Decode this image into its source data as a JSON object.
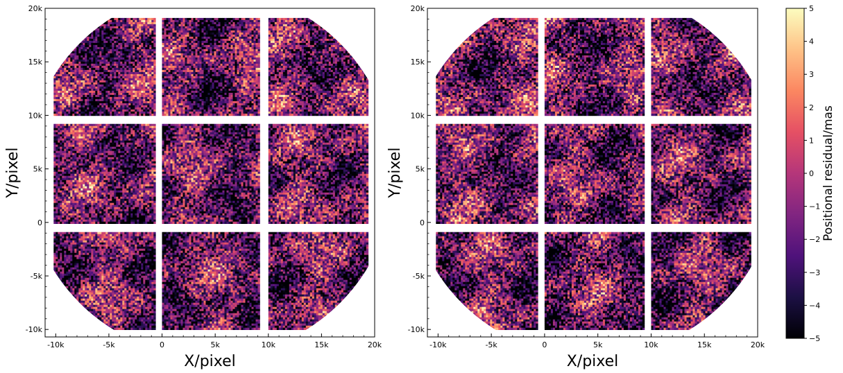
{
  "chart_data": [
    {
      "type": "heatmap",
      "xlabel": "X/pixel",
      "ylabel": "Y/pixel",
      "xlim": [
        -11000,
        20000
      ],
      "ylim": [
        -10700,
        20000
      ],
      "xticks": [
        -10000,
        -5000,
        0,
        5000,
        10000,
        15000,
        20000
      ],
      "yticks": [
        -10000,
        -5000,
        0,
        5000,
        10000,
        15000,
        20000
      ],
      "xtick_labels": [
        "-10k",
        "-5k",
        "0",
        "5k",
        "10k",
        "15k",
        "20k"
      ],
      "ytick_labels": [
        "-10k",
        "-5k",
        "0",
        "5k",
        "10k",
        "15k",
        "20k"
      ],
      "layout": "3x3 detector mosaic inside a circular field of view",
      "detector_x_ranges": [
        [
          -10200,
          -800
        ],
        [
          0,
          9200
        ],
        [
          10000,
          19300
        ]
      ],
      "detector_y_ranges": [
        [
          -10000,
          -900
        ],
        [
          0,
          9200
        ],
        [
          10000,
          19100
        ]
      ],
      "field_circle_center": [
        4500,
        4600
      ],
      "field_circle_radius": 17300,
      "value_range": [
        -5,
        5
      ],
      "colormap": "magma"
    },
    {
      "type": "heatmap",
      "xlabel": "X/pixel",
      "ylabel": "Y/pixel",
      "xlim": [
        -11000,
        20000
      ],
      "ylim": [
        -10700,
        20000
      ],
      "xticks": [
        -10000,
        -5000,
        0,
        5000,
        10000,
        15000,
        20000
      ],
      "yticks": [
        -10000,
        -5000,
        0,
        5000,
        10000,
        15000,
        20000
      ],
      "xtick_labels": [
        "-10k",
        "-5k",
        "0",
        "5k",
        "10k",
        "15k",
        "20k"
      ],
      "ytick_labels": [
        "-10k",
        "-5k",
        "0",
        "5k",
        "10k",
        "15k",
        "20k"
      ],
      "layout": "3x3 detector mosaic inside a circular field of view",
      "detector_x_ranges": [
        [
          -10200,
          -800
        ],
        [
          0,
          9200
        ],
        [
          10000,
          19300
        ]
      ],
      "detector_y_ranges": [
        [
          -10000,
          -900
        ],
        [
          0,
          9200
        ],
        [
          10000,
          19100
        ]
      ],
      "field_circle_center": [
        4500,
        4600
      ],
      "field_circle_radius": 17300,
      "value_range": [
        -5,
        5
      ],
      "colormap": "magma"
    }
  ],
  "colorbar": {
    "label": "Positional residual/mas",
    "ticks": [
      -5,
      -4,
      -3,
      -2,
      -1,
      0,
      1,
      2,
      3,
      4,
      5
    ],
    "tick_labels": [
      "−5",
      "−4",
      "−3",
      "−2",
      "−1",
      "0",
      "1",
      "2",
      "3",
      "4",
      "5"
    ],
    "colors": [
      "#000004",
      "#1c1044",
      "#4f127b",
      "#812581",
      "#b5367a",
      "#e55064",
      "#fb8761",
      "#fec287",
      "#fcfdbf"
    ]
  }
}
